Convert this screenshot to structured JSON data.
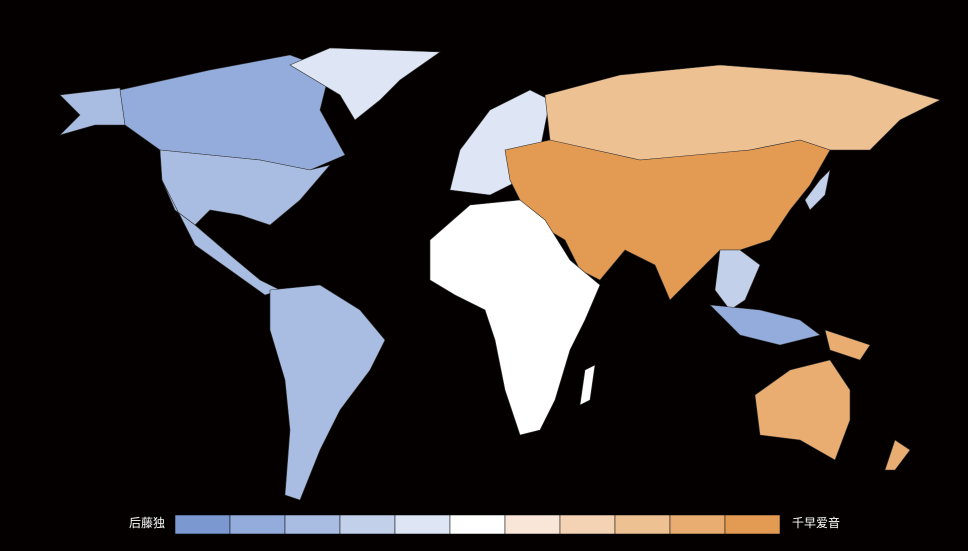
{
  "legend": {
    "low_label": "后藤独",
    "high_label": "千早爱音",
    "colors": [
      "#7b98d1",
      "#93acdb",
      "#a9bde3",
      "#c3d0ea",
      "#dee5f4",
      "#ffffff",
      "#fae6d8",
      "#f4d3b5",
      "#eec193",
      "#e9ad72",
      "#e39a53"
    ]
  }
}
